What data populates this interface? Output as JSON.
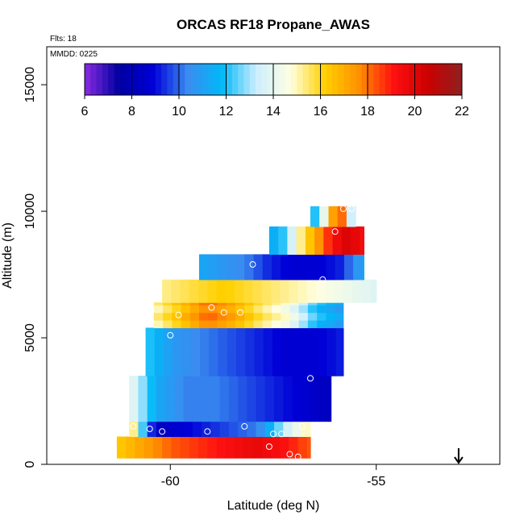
{
  "chart_data": {
    "type": "heatmap",
    "title": "ORCAS RF18 Propane_AWAS",
    "flights_label": "Flts: 18",
    "date_label": "MMDD: 0225",
    "xlabel": "Latitude (deg N)",
    "ylabel": "Altitude (m)",
    "xlim": [
      -63,
      -52
    ],
    "ylim": [
      0,
      16500
    ],
    "xticks": [
      -60,
      -55
    ],
    "xtick_labels": [
      "-60",
      "-55"
    ],
    "yticks": [
      0,
      5000,
      10000,
      15000
    ],
    "ytick_labels": [
      "0",
      "5000",
      "10000",
      "15000"
    ],
    "colorbar": {
      "min": 6,
      "max": 22,
      "ticks": [
        6,
        8,
        10,
        12,
        14,
        16,
        18,
        20,
        22
      ],
      "tick_labels": [
        "6",
        "8",
        "10",
        "12",
        "14",
        "16",
        "18",
        "20",
        "22"
      ]
    },
    "bands": [
      {
        "lat0": -61.3,
        "lat1": -56.6,
        "alt0": 250,
        "alt1": 1100,
        "vals": [
          16,
          17,
          18,
          18.5,
          19,
          19.5,
          19,
          18
        ]
      },
      {
        "lat0": -61.0,
        "lat1": -56.6,
        "alt0": 1100,
        "alt1": 1700,
        "vals": [
          16.5,
          8,
          8.5,
          9,
          9.5,
          10,
          13,
          15
        ]
      },
      {
        "lat0": -61.0,
        "lat1": -56.1,
        "alt0": 1700,
        "alt1": 3500,
        "vals": [
          14,
          11,
          10,
          10,
          9.5,
          9,
          8.5,
          8
        ]
      },
      {
        "lat0": -60.6,
        "lat1": -55.8,
        "alt0": 3500,
        "alt1": 5400,
        "vals": [
          12,
          10.5,
          10,
          9.5,
          9,
          8.5,
          8.5,
          9
        ]
      },
      {
        "lat0": -60.4,
        "lat1": -55.8,
        "alt0": 5400,
        "alt1": 6400,
        "vals": [
          15,
          16.5,
          18,
          17,
          15.5,
          14.5,
          12,
          11
        ]
      },
      {
        "lat0": -60.2,
        "lat1": -55.0,
        "alt0": 6400,
        "alt1": 7300,
        "vals": [
          15,
          15.5,
          16,
          15.5,
          15,
          14.5,
          14,
          13.5
        ]
      },
      {
        "lat0": -59.3,
        "lat1": -55.3,
        "alt0": 7300,
        "alt1": 8300,
        "vals": [
          11,
          10.5,
          10,
          9,
          8.5,
          8.5,
          9,
          11
        ]
      },
      {
        "lat0": -57.6,
        "lat1": -55.3,
        "alt0": 8300,
        "alt1": 9400,
        "vals": [
          11,
          12,
          15,
          17,
          19,
          20,
          19
        ]
      },
      {
        "lat0": -56.6,
        "lat1": -55.5,
        "alt0": 9400,
        "alt1": 10200,
        "vals": [
          11,
          13,
          17,
          18,
          10
        ]
      }
    ],
    "samples": [
      {
        "lat": -60.0,
        "alt": 5100
      },
      {
        "lat": -59.8,
        "alt": 5900
      },
      {
        "lat": -59.0,
        "alt": 6200
      },
      {
        "lat": -58.7,
        "alt": 6000
      },
      {
        "lat": -58.3,
        "alt": 6000
      },
      {
        "lat": -58.0,
        "alt": 7900
      },
      {
        "lat": -56.3,
        "alt": 7300
      },
      {
        "lat": -56.0,
        "alt": 9200
      },
      {
        "lat": -55.8,
        "alt": 10100
      },
      {
        "lat": -55.6,
        "alt": 10100
      },
      {
        "lat": -56.6,
        "alt": 3400
      },
      {
        "lat": -56.8,
        "alt": 1500
      },
      {
        "lat": -57.3,
        "alt": 1200
      },
      {
        "lat": -57.5,
        "alt": 1200
      },
      {
        "lat": -57.6,
        "alt": 700
      },
      {
        "lat": -57.1,
        "alt": 400
      },
      {
        "lat": -56.9,
        "alt": 300
      },
      {
        "lat": -57.9,
        "alt": 100
      },
      {
        "lat": -58.2,
        "alt": 1500
      },
      {
        "lat": -59.1,
        "alt": 1300
      },
      {
        "lat": -60.2,
        "alt": 1300
      },
      {
        "lat": -60.5,
        "alt": 1400
      },
      {
        "lat": -60.9,
        "alt": 1500
      },
      {
        "lat": -61.2,
        "alt": 1600
      }
    ],
    "arrow": {
      "lat": -53.0,
      "direction": "down"
    }
  },
  "colors": {
    "scale": [
      "#8a2be2",
      "#0000a0",
      "#0000d8",
      "#3a8cf0",
      "#00b8f8",
      "#cceeff",
      "#ffffe0",
      "#ffd000",
      "#ff9000",
      "#ff1010",
      "#cc0000",
      "#902020"
    ]
  }
}
